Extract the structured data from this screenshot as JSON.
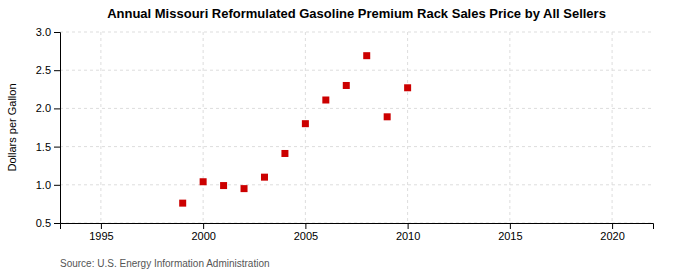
{
  "chart_data": {
    "type": "scatter",
    "title": "Annual Missouri Reformulated Gasoline Premium Rack Sales Price by All Sellers",
    "ylabel": "Dollars per Gallon",
    "annotation": "Source: U.S. Energy Information Administration",
    "x": [
      1999,
      2000,
      2001,
      2002,
      2003,
      2004,
      2005,
      2006,
      2007,
      2008,
      2009,
      2010
    ],
    "values": [
      0.76,
      1.04,
      0.99,
      0.95,
      1.1,
      1.41,
      1.8,
      2.11,
      2.3,
      2.69,
      1.89,
      2.27
    ],
    "color": "#cc0000",
    "marker": "square",
    "xlim": [
      1993,
      2022
    ],
    "ylim": [
      0.5,
      3.0
    ],
    "xticks": [
      1995,
      2000,
      2005,
      2010,
      2015,
      2020
    ],
    "yticks": [
      0.5,
      {
        "value": 1.0,
        "label": "1.0"
      },
      1.5,
      {
        "value": 2.0,
        "label": "2.0"
      },
      2.5,
      {
        "value": 3.0,
        "label": "3.0"
      }
    ],
    "grid": true
  }
}
